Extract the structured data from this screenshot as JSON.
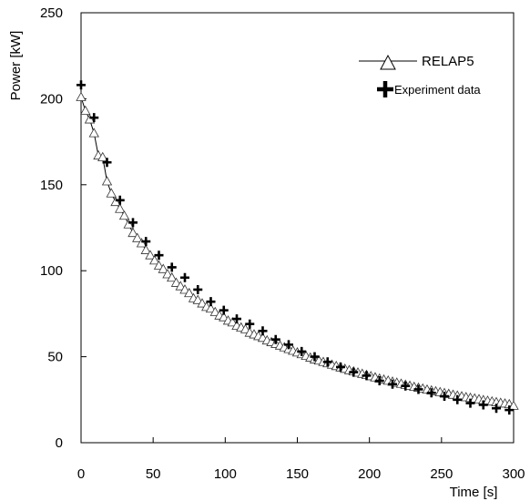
{
  "chart_data": {
    "type": "line",
    "xlabel": "Time [s]",
    "ylabel": "Power [kW]",
    "xlim": [
      0,
      300
    ],
    "ylim": [
      0,
      250
    ],
    "xticks": [
      0,
      50,
      100,
      150,
      200,
      250,
      300
    ],
    "yticks": [
      0,
      50,
      100,
      150,
      200,
      250
    ],
    "grid": false,
    "legend_position": "top-right",
    "series": [
      {
        "name": "RELAP5",
        "marker": "triangle",
        "line": true,
        "color": "#000000",
        "x": [
          0,
          3,
          6,
          9,
          12,
          15,
          18,
          21,
          24,
          27,
          30,
          33,
          36,
          39,
          42,
          45,
          48,
          51,
          54,
          57,
          60,
          63,
          66,
          69,
          72,
          75,
          78,
          81,
          84,
          87,
          90,
          93,
          96,
          99,
          102,
          105,
          108,
          111,
          114,
          117,
          120,
          123,
          126,
          129,
          132,
          135,
          138,
          141,
          144,
          147,
          150,
          153,
          156,
          159,
          162,
          165,
          168,
          171,
          174,
          177,
          180,
          183,
          186,
          189,
          192,
          195,
          198,
          201,
          204,
          207,
          210,
          213,
          216,
          219,
          222,
          225,
          228,
          231,
          234,
          237,
          240,
          243,
          246,
          249,
          252,
          255,
          258,
          261,
          264,
          267,
          270,
          273,
          276,
          279,
          282,
          285,
          288,
          291,
          294,
          297,
          300
        ],
        "y": [
          201,
          193,
          188,
          180,
          167,
          166,
          152,
          145,
          140,
          136,
          132,
          127,
          122,
          119,
          116,
          112,
          109,
          106,
          103,
          101,
          98,
          96,
          93,
          91,
          89,
          87,
          84,
          83,
          81,
          79,
          78,
          76,
          74,
          73,
          71,
          70,
          68,
          67,
          66,
          64,
          63,
          62,
          61,
          59.5,
          58.5,
          57.5,
          56.5,
          55.5,
          54.5,
          53.5,
          52.5,
          51.5,
          50.5,
          49.5,
          48.5,
          47.8,
          47,
          46.2,
          45.4,
          44.6,
          43.8,
          43,
          42.2,
          41.5,
          40.8,
          40.1,
          39.4,
          38.7,
          38,
          37.3,
          36.7,
          36.1,
          35.5,
          34.9,
          34.3,
          33.7,
          33.1,
          32.5,
          32,
          31.5,
          30.9,
          30.4,
          29.9,
          29.4,
          28.9,
          28.4,
          27.9,
          27.4,
          27,
          26.5,
          26.1,
          25.7,
          25.3,
          24.8,
          24.4,
          24,
          23.6,
          23.2,
          22.8,
          22.4,
          21.5
        ]
      },
      {
        "name": "Experiment data",
        "marker": "plus",
        "line": false,
        "color": "#000000",
        "x": [
          0,
          9,
          18,
          27,
          36,
          45,
          54,
          63,
          72,
          81,
          90,
          99,
          108,
          117,
          126,
          135,
          144,
          153,
          162,
          171,
          180,
          189,
          198,
          207,
          216,
          225,
          234,
          243,
          252,
          261,
          270,
          279,
          288,
          297
        ],
        "y": [
          208,
          189,
          163,
          141,
          128,
          117,
          109,
          102,
          96,
          89,
          82,
          77,
          72,
          69,
          65,
          60,
          57,
          53,
          50,
          47,
          44,
          41,
          39,
          36,
          34,
          33,
          31,
          29,
          27,
          25,
          23,
          22,
          20,
          19
        ]
      }
    ]
  }
}
